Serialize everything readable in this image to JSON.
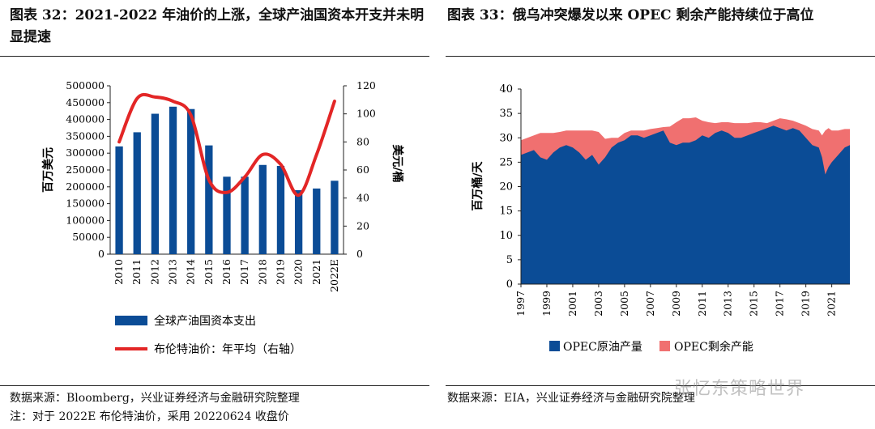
{
  "left_title": "图表 32：2021-2022 年油价的上涨，全球产油国资本开支并未明显提速",
  "right_title": "图表 33：俄乌冲突爆发以来 OPEC 剩余产能持续位于高位",
  "left_source": "数据来源：Bloomberg，兴业证券经济与金融研究院整理",
  "left_note": "注：对于 2022E 布伦特油价，采用 20220624 收盘价",
  "right_source": "数据来源：EIA，兴业证券经济与金融研究院整理",
  "watermark": "张忆东策略世界",
  "colors": {
    "bar": "#0b4c96",
    "line": "#e32626",
    "area_production": "#0b4c96",
    "area_spare": "#f07070"
  },
  "chart_data": [
    {
      "type": "bar",
      "categories": [
        "2010",
        "2011",
        "2012",
        "2013",
        "2014",
        "2015",
        "2016",
        "2017",
        "2018",
        "2019",
        "2020",
        "2021",
        "2022E"
      ],
      "series": [
        {
          "name": "全球产油国资本支出",
          "axis": "left",
          "values": [
            320000,
            362000,
            417000,
            438000,
            431000,
            323000,
            230000,
            230000,
            265000,
            262000,
            190000,
            195000,
            218000
          ]
        },
        {
          "name": "布伦特油价：年平均（右轴）",
          "axis": "right",
          "type": "line",
          "values": [
            80,
            111,
            112,
            109,
            99,
            53,
            44,
            55,
            71,
            64,
            42,
            71,
            109
          ]
        }
      ],
      "ylabel": "百万美元",
      "ylabel_right": "美元/桶",
      "ylim": [
        0,
        500000
      ],
      "yticks": [
        "0",
        "50000",
        "100000",
        "150000",
        "200000",
        "250000",
        "300000",
        "350000",
        "400000",
        "450000",
        "500000"
      ],
      "ylim_right": [
        0,
        120
      ],
      "yticks_right": [
        "0",
        "20",
        "40",
        "60",
        "80",
        "100",
        "120"
      ],
      "legend": [
        "全球产油国资本支出",
        "布伦特油价：年平均（右轴）"
      ]
    },
    {
      "type": "area",
      "x": [
        1997,
        1997.5,
        1998,
        1998.5,
        1999,
        1999.5,
        2000,
        2000.5,
        2001,
        2001.5,
        2002,
        2002.5,
        2003,
        2003.5,
        2004,
        2004.5,
        2005,
        2005.5,
        2006,
        2006.5,
        2007,
        2007.5,
        2008,
        2008.5,
        2009,
        2009.5,
        2010,
        2010.5,
        2011,
        2011.5,
        2012,
        2012.5,
        2013,
        2013.5,
        2014,
        2014.5,
        2015,
        2015.5,
        2016,
        2016.5,
        2017,
        2017.5,
        2018,
        2018.5,
        2019,
        2019.5,
        2020,
        2020.25,
        2020.5,
        2020.75,
        2021,
        2021.5,
        2022,
        2022.4
      ],
      "series": [
        {
          "name": "OPEC原油产量",
          "values": [
            26.5,
            27,
            27.5,
            26,
            25.5,
            27,
            28,
            28.5,
            28,
            27,
            25.5,
            26.5,
            24.5,
            26,
            28,
            29,
            29.5,
            30.5,
            30.5,
            30,
            30.5,
            31,
            31.5,
            29,
            28.5,
            29,
            29,
            29.5,
            30.5,
            30,
            31,
            31.5,
            31,
            30,
            30,
            30.5,
            31,
            31.5,
            32,
            32.5,
            32,
            31.5,
            32,
            31.5,
            30,
            28.5,
            28,
            26,
            22.5,
            24,
            25,
            26.5,
            28,
            28.5
          ]
        },
        {
          "name": "OPEC剩余产能",
          "values": [
            29.5,
            30,
            30.5,
            31,
            31,
            31,
            31.2,
            31.5,
            31.5,
            31.5,
            31.5,
            31.5,
            31.2,
            29.8,
            30,
            30,
            31,
            31.5,
            31.5,
            31.5,
            31.8,
            32,
            32.2,
            32.3,
            33.2,
            34,
            34,
            34.2,
            33.5,
            33.2,
            33,
            33.2,
            33.2,
            33,
            33,
            33,
            33.2,
            33.2,
            33,
            33.5,
            34,
            33.8,
            33.5,
            33,
            32.5,
            31.8,
            31.5,
            30.5,
            31.5,
            32,
            31.5,
            31.5,
            31.8,
            31.8
          ]
        }
      ],
      "xlabel": "",
      "ylabel": "百万桶/天",
      "ylim": [
        0,
        40
      ],
      "yticks": [
        "0",
        "5",
        "10",
        "15",
        "20",
        "25",
        "30",
        "35",
        "40"
      ],
      "xticks": [
        "1997",
        "1999",
        "2001",
        "2003",
        "2005",
        "2007",
        "2009",
        "2011",
        "2013",
        "2015",
        "2017",
        "2019",
        "2021"
      ],
      "legend": [
        "OPEC原油产量",
        "OPEC剩余产能"
      ]
    }
  ]
}
